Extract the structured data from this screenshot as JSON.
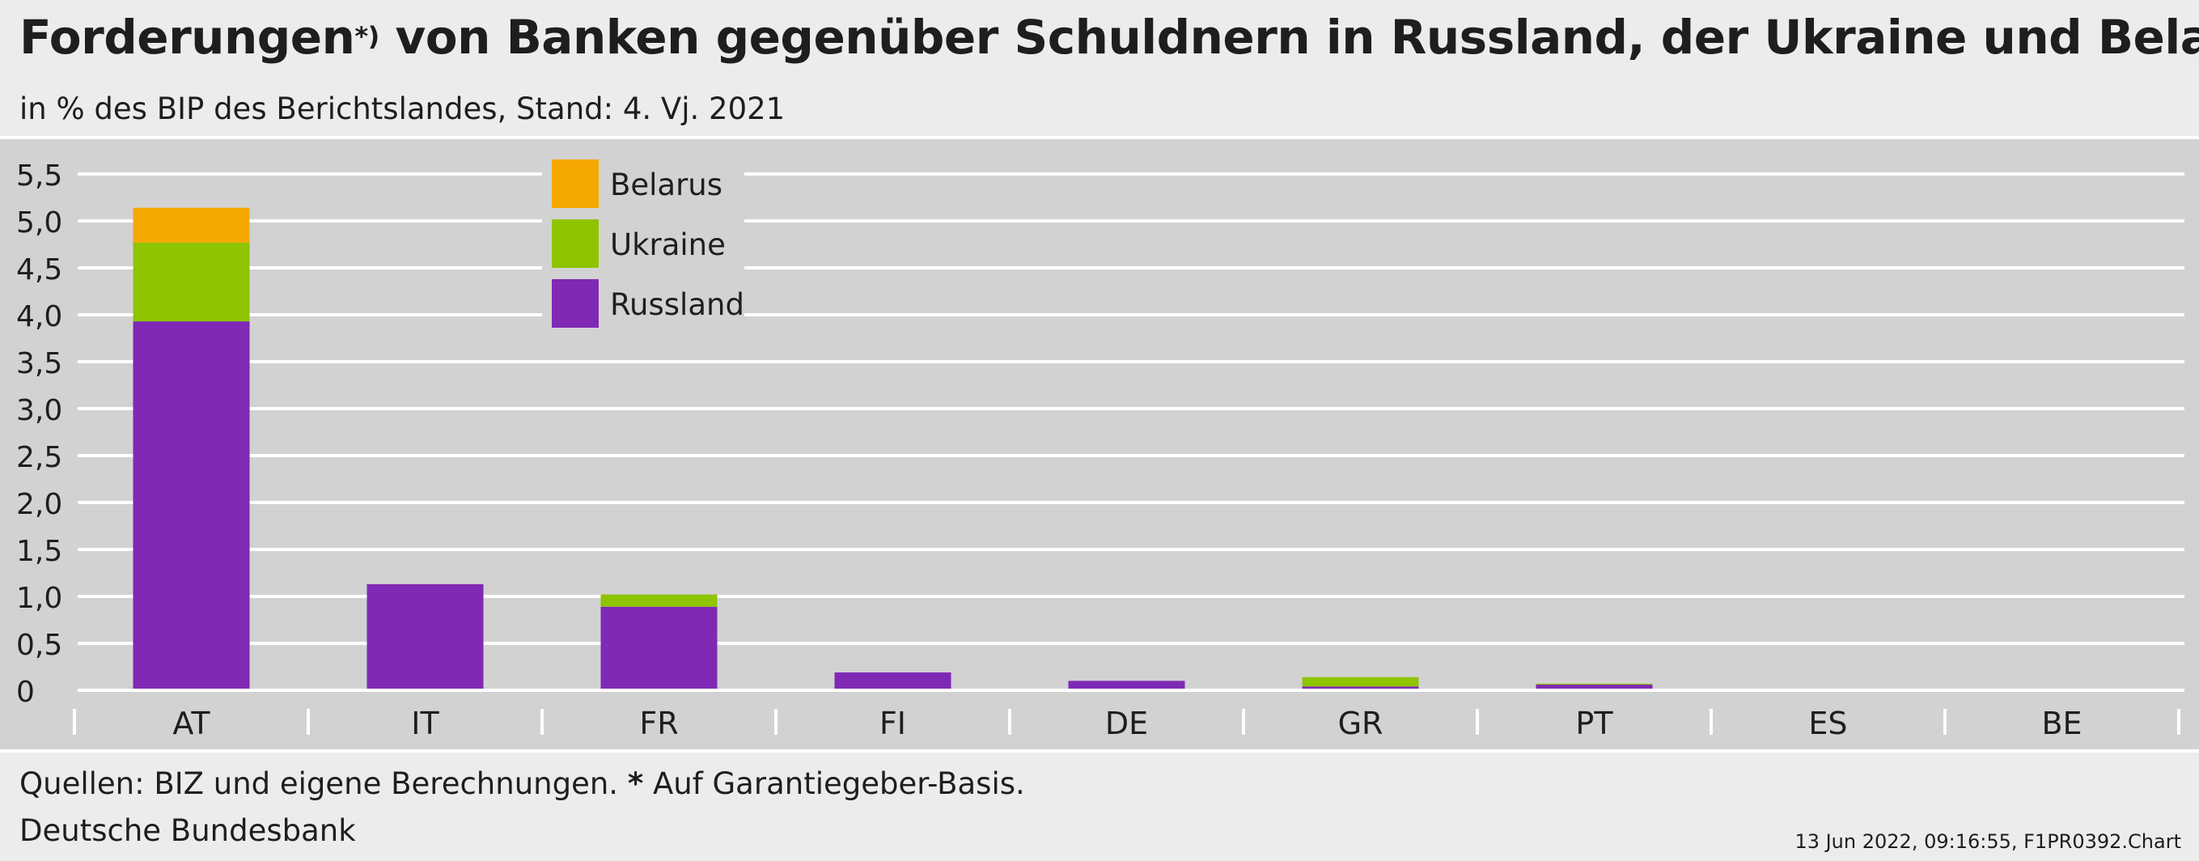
{
  "header": {
    "title_main": "Forderungen",
    "title_sup": "*)",
    "title_rest": " von Banken gegenüber Schuldnern in Russland, der Ukraine und Belarus",
    "subtitle": "in % des BIP des Berichtslandes, Stand: 4. Vj. 2021"
  },
  "footer": {
    "source_text": "Quellen: BIZ und eigene Berechnungen. ",
    "source_star": "*",
    "source_note": " Auf Garantiegeber-Basis.",
    "publisher": "Deutsche Bundesbank",
    "stamp": "13 Jun 2022, 09:16:55, F1PR0392.Chart"
  },
  "chart_data": {
    "type": "bar",
    "stacked": true,
    "categories": [
      "AT",
      "IT",
      "FR",
      "FI",
      "DE",
      "GR",
      "PT",
      "ES",
      "BE"
    ],
    "series": [
      {
        "name": "Russland",
        "color": "#7f29b5",
        "values": [
          3.93,
          1.13,
          0.89,
          0.19,
          0.1,
          0.04,
          0.06,
          0.0,
          0.0
        ]
      },
      {
        "name": "Ukraine",
        "color": "#8fc400",
        "values": [
          0.84,
          0.0,
          0.13,
          0.0,
          0.0,
          0.1,
          0.01,
          0.0,
          0.0
        ]
      },
      {
        "name": "Belarus",
        "color": "#f5a800",
        "values": [
          0.37,
          0.0,
          0.0,
          0.0,
          0.0,
          0.0,
          0.0,
          0.0,
          0.0
        ]
      }
    ],
    "legend_order": [
      "Belarus",
      "Ukraine",
      "Russland"
    ],
    "yticks": [
      "0",
      "0,5",
      "1,0",
      "1,5",
      "2,0",
      "2,5",
      "3,0",
      "3,5",
      "4,0",
      "4,5",
      "5,0",
      "5,5"
    ],
    "ylim": [
      0,
      5.5
    ],
    "grid": true,
    "legend_position": "top-left"
  }
}
